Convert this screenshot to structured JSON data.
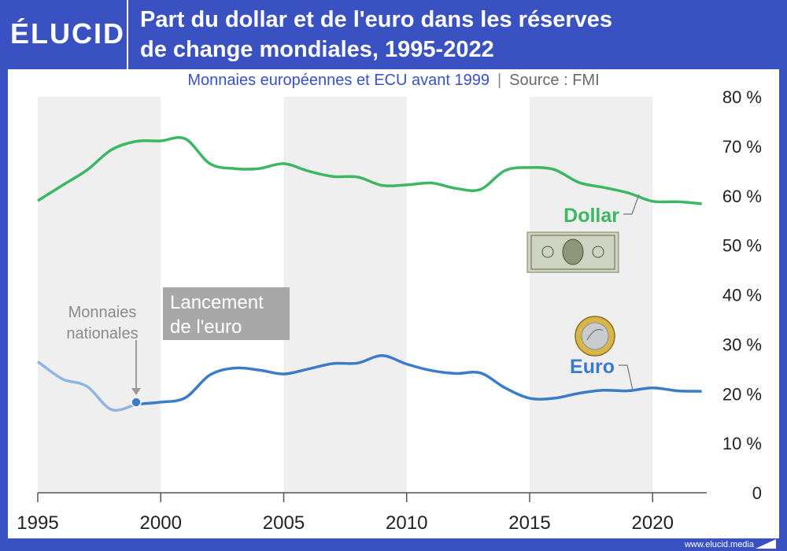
{
  "header": {
    "logo": "ÉLUCID",
    "title_line1": "Part du dollar et de l'euro dans les réserves",
    "title_line2": "de change mondiales, 1995-2022"
  },
  "subtitle": "Monnaies européennes et ECU avant 1999",
  "separator": "|",
  "source": "Source : FMI",
  "footer": {
    "url": "www.elucid.media"
  },
  "colors": {
    "brand": "#3a51c2",
    "dollar": "#3cb863",
    "euro": "#3a7cc9",
    "euro_pre": "#8fb6e2",
    "band": "#efefef",
    "annotation_box": "#a8a8a8",
    "annotation_text": "#8a8a8a"
  },
  "annotations": {
    "national": [
      "Monnaies",
      "nationales"
    ],
    "launch": [
      "Lancement",
      "de l'euro"
    ]
  },
  "chart_data": {
    "type": "line",
    "title": "Part du dollar et de l'euro dans les réserves de change mondiales, 1995-2022",
    "xlabel": "",
    "ylabel": "",
    "xlim": [
      1995,
      2022.2
    ],
    "ylim": [
      0,
      80
    ],
    "x_ticks": [
      1995,
      2000,
      2005,
      2010,
      2015,
      2020
    ],
    "y_ticks": [
      0,
      10,
      20,
      30,
      40,
      50,
      60,
      70,
      80
    ],
    "y_tick_labels": [
      "0",
      "10 %",
      "20 %",
      "30 %",
      "40 %",
      "50 %",
      "60 %",
      "70 %",
      "80 %"
    ],
    "grid": false,
    "legend": "inline labels",
    "series": [
      {
        "name": "Dollar",
        "x": [
          1995,
          1996,
          1997,
          1998,
          1999,
          2000,
          2001,
          2002,
          2003,
          2004,
          2005,
          2006,
          2007,
          2008,
          2009,
          2010,
          2011,
          2012,
          2013,
          2014,
          2015,
          2016,
          2017,
          2018,
          2019,
          2020,
          2021,
          2022
        ],
        "values": [
          59.0,
          62.1,
          65.2,
          69.3,
          71.0,
          71.1,
          71.5,
          66.5,
          65.5,
          65.5,
          66.5,
          65.0,
          63.9,
          63.8,
          62.1,
          62.2,
          62.6,
          61.5,
          61.3,
          65.1,
          65.7,
          65.3,
          62.7,
          61.7,
          60.6,
          58.9,
          58.8,
          58.4
        ]
      },
      {
        "name": "Euro",
        "x": [
          1999,
          2000,
          2001,
          2002,
          2003,
          2004,
          2005,
          2006,
          2007,
          2008,
          2009,
          2010,
          2011,
          2012,
          2013,
          2014,
          2015,
          2016,
          2017,
          2018,
          2019,
          2020,
          2021,
          2022
        ],
        "values": [
          17.9,
          18.3,
          19.2,
          23.8,
          25.2,
          24.8,
          24.0,
          25.0,
          26.1,
          26.2,
          27.7,
          26.0,
          24.7,
          24.1,
          24.2,
          21.2,
          19.1,
          19.1,
          20.1,
          20.7,
          20.6,
          21.2,
          20.6,
          20.5
        ]
      },
      {
        "name": "Monnaies nationales",
        "x": [
          1995,
          1996,
          1997,
          1998,
          1999
        ],
        "values": [
          26.5,
          23.0,
          21.5,
          16.8,
          17.9
        ]
      }
    ],
    "events": [
      {
        "x": 1999,
        "value": 18.3,
        "label": "Lancement de l'euro"
      }
    ]
  }
}
